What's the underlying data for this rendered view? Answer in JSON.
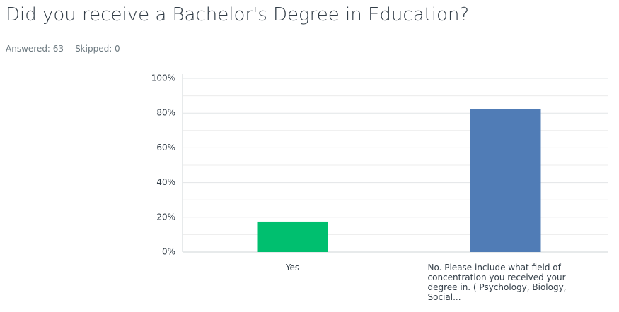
{
  "chart_data": {
    "type": "bar",
    "title": "Did you receive a Bachelor's Degree in Education?",
    "answered": "Answered: 63",
    "skipped": "Skipped: 0",
    "categories": [
      "Yes",
      "No. Please include what field of concentration you received your degree in. ( Psychology, Biology, Social..."
    ],
    "values": [
      17.5,
      82.5
    ],
    "colors": [
      "#00bf6f",
      "#507cb6"
    ],
    "ylim": [
      0,
      100
    ],
    "yticks": [
      {
        "value": 0,
        "label": "0%"
      },
      {
        "value": 20,
        "label": "20%"
      },
      {
        "value": 40,
        "label": "40%"
      },
      {
        "value": 60,
        "label": "60%"
      },
      {
        "value": 80,
        "label": "80%"
      },
      {
        "value": 100,
        "label": "100%"
      }
    ],
    "minor_gridticks": [
      10,
      30,
      50,
      70,
      90
    ],
    "grid": true
  }
}
